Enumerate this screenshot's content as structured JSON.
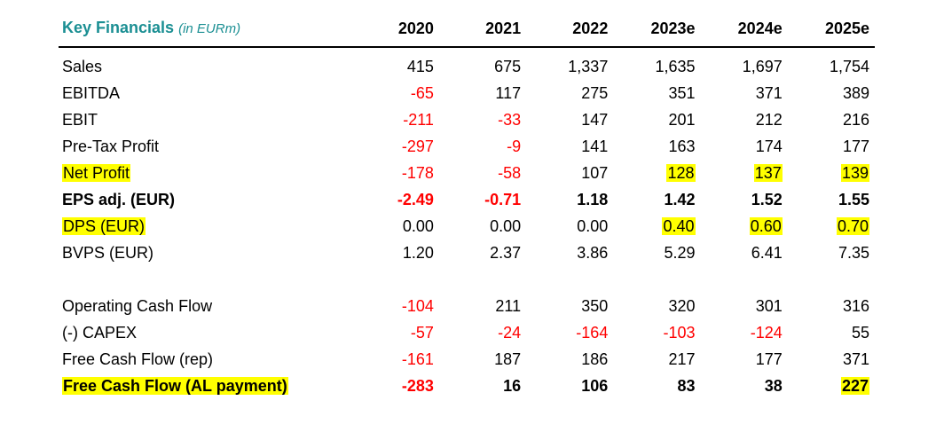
{
  "table": {
    "title": "Key Financials",
    "unit": "(in EURm)",
    "years": [
      "2020",
      "2021",
      "2022",
      "2023e",
      "2024e",
      "2025e"
    ],
    "colors": {
      "title": "#1b8f93",
      "negative": "#ff0000",
      "highlight": "#ffff00"
    },
    "rows": [
      {
        "label": "Sales",
        "values": [
          "415",
          "675",
          "1,337",
          "1,635",
          "1,697",
          "1,754"
        ]
      },
      {
        "label": "EBITDA",
        "values": [
          "-65",
          "117",
          "275",
          "351",
          "371",
          "389"
        ]
      },
      {
        "label": "EBIT",
        "values": [
          "-211",
          "-33",
          "147",
          "201",
          "212",
          "216"
        ]
      },
      {
        "label": "Pre-Tax Profit",
        "values": [
          "-297",
          "-9",
          "141",
          "163",
          "174",
          "177"
        ]
      },
      {
        "label": "Net Profit",
        "values": [
          "-178",
          "-58",
          "107",
          "128",
          "137",
          "139"
        ]
      },
      {
        "label": "EPS adj. (EUR)",
        "values": [
          "-2.49",
          "-0.71",
          "1.18",
          "1.42",
          "1.52",
          "1.55"
        ]
      },
      {
        "label": "DPS (EUR)",
        "values": [
          "0.00",
          "0.00",
          "0.00",
          "0.40",
          "0.60",
          "0.70"
        ]
      },
      {
        "label": "BVPS (EUR)",
        "values": [
          "1.20",
          "2.37",
          "3.86",
          "5.29",
          "6.41",
          "7.35"
        ]
      },
      {
        "label": "Operating Cash Flow",
        "values": [
          "-104",
          "211",
          "350",
          "320",
          "301",
          "316"
        ]
      },
      {
        "label": "(-) CAPEX",
        "values": [
          "-57",
          "-24",
          "-164",
          "-103",
          "-124",
          "55"
        ]
      },
      {
        "label": "Free Cash Flow (rep)",
        "values": [
          "-161",
          "187",
          "186",
          "217",
          "177",
          "371"
        ]
      },
      {
        "label": "Free Cash Flow (AL payment)",
        "values": [
          "-283",
          "16",
          "106",
          "83",
          "38",
          "227"
        ]
      }
    ]
  }
}
